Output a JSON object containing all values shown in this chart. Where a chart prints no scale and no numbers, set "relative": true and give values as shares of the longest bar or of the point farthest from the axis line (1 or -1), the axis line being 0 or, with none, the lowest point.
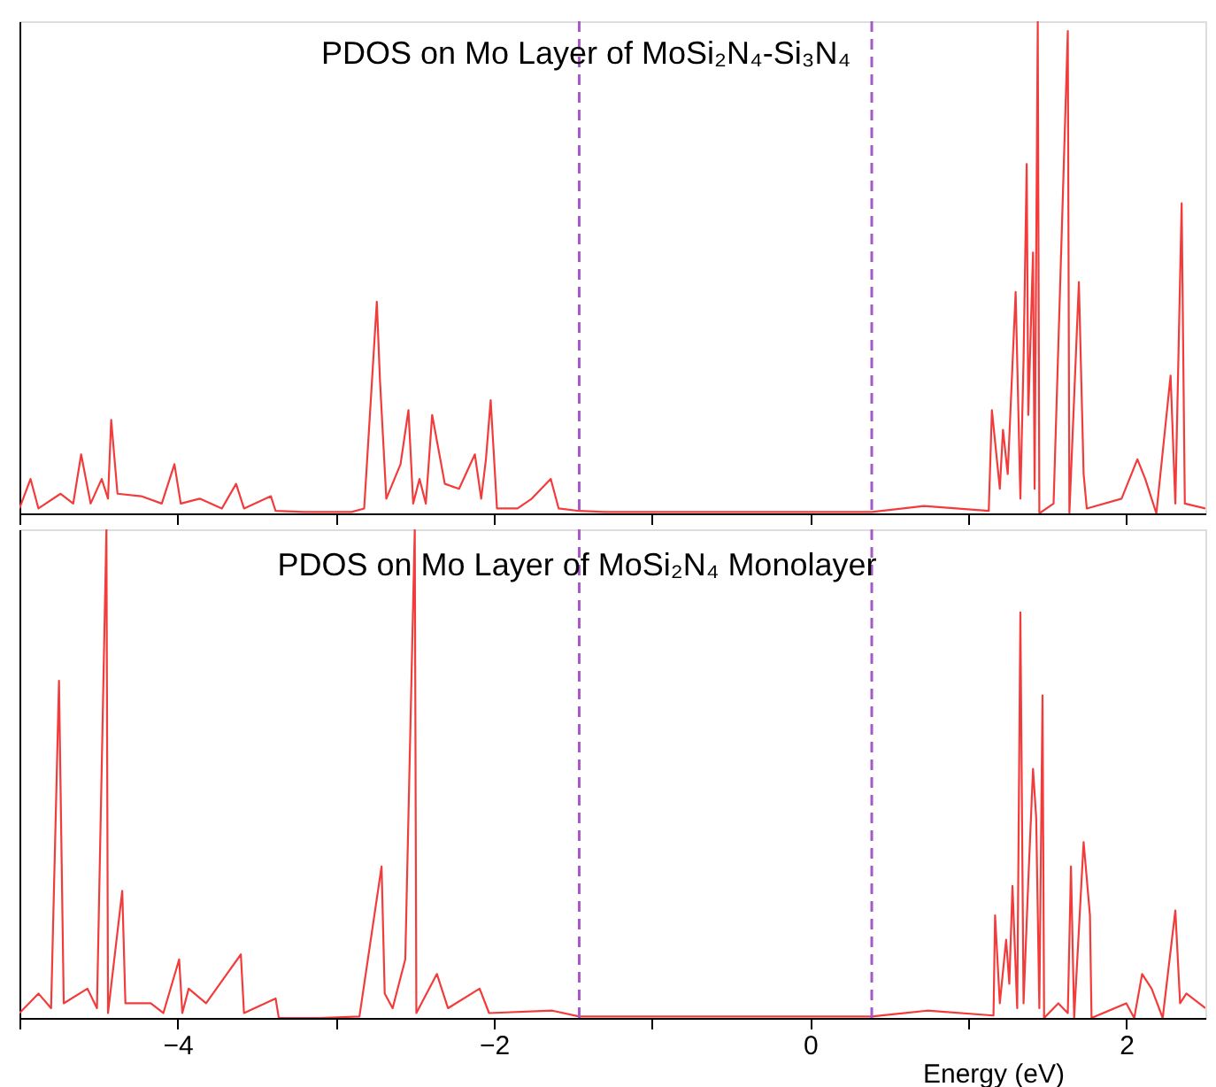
{
  "chart_data": [
    {
      "type": "line",
      "title": "PDOS on Mo Layer of MoSi₂N₄-Si₃N₄",
      "relative": true,
      "marker": "none",
      "line_style": "solid",
      "grid": false,
      "tick_labels": false,
      "xlim": [
        -5,
        2.5
      ],
      "xticks": [
        {
          "value": -5,
          "label": null
        },
        -4,
        {
          "value": -3,
          "label": null
        },
        -2,
        {
          "value": -1,
          "label": null
        },
        0,
        {
          "value": 1,
          "label": null
        },
        2
      ],
      "x": [
        -5.0,
        -4.93,
        -4.88,
        -4.74,
        -4.66,
        -4.61,
        -4.55,
        -4.48,
        -4.44,
        -4.42,
        -4.38,
        -4.23,
        -4.1,
        -4.02,
        -3.98,
        -3.86,
        -3.72,
        -3.63,
        -3.58,
        -3.41,
        -3.38,
        -3.2,
        -2.9,
        -2.82,
        -2.74,
        -2.72,
        -2.68,
        -2.59,
        -2.54,
        -2.51,
        -2.47,
        -2.43,
        -2.39,
        -2.31,
        -2.22,
        -2.12,
        -2.08,
        -2.05,
        -2.02,
        -1.98,
        -1.85,
        -1.76,
        -1.64,
        -1.59,
        -1.46,
        -1.3,
        0.39,
        0.72,
        1.13,
        1.15,
        1.2,
        1.22,
        1.25,
        1.3,
        1.33,
        1.35,
        1.37,
        1.38,
        1.41,
        1.42,
        1.44,
        1.45,
        1.54,
        1.63,
        1.64,
        1.7,
        1.73,
        1.75,
        1.97,
        2.07,
        2.12,
        2.19,
        2.28,
        2.31,
        2.35,
        2.37,
        2.5
      ],
      "series": [
        {
          "color": "#f23c3c",
          "values": [
            0.01,
            0.07,
            0.01,
            0.04,
            0.02,
            0.12,
            0.02,
            0.07,
            0.03,
            0.19,
            0.04,
            0.035,
            0.02,
            0.1,
            0.02,
            0.03,
            0.01,
            0.06,
            0.01,
            0.035,
            0.005,
            0.003,
            0.003,
            0.01,
            0.43,
            0.27,
            0.03,
            0.1,
            0.21,
            0.02,
            0.07,
            0.02,
            0.2,
            0.06,
            0.05,
            0.12,
            0.03,
            0.11,
            0.23,
            0.01,
            0.01,
            0.03,
            0.07,
            0.01,
            0.005,
            0.003,
            0.003,
            0.015,
            0.005,
            0.21,
            0.05,
            0.17,
            0.08,
            0.45,
            0.03,
            0.31,
            0.71,
            0.2,
            0.53,
            0.05,
            1.0,
            0.0,
            0.02,
            0.98,
            0.0,
            0.47,
            0.08,
            0.01,
            0.03,
            0.11,
            0.07,
            0.0,
            0.28,
            0.02,
            0.63,
            0.02,
            0.01
          ]
        }
      ],
      "ref_lines": [
        {
          "axis": "x",
          "value": -1.46,
          "color": "#a65ac8",
          "line_style": "dashed"
        },
        {
          "axis": "x",
          "value": 0.39,
          "color": "#a65ac8",
          "line_style": "dashed"
        }
      ]
    },
    {
      "type": "line",
      "title": "PDOS on Mo Layer of MoSi₂N₄ Monolayer",
      "xlabel": "Energy (eV)",
      "relative": true,
      "marker": "none",
      "line_style": "solid",
      "grid": false,
      "tick_labels": "x",
      "xlim": [
        -5,
        2.5
      ],
      "xticks": [
        {
          "value": -5,
          "label": null
        },
        -4,
        {
          "value": -3,
          "label": null
        },
        -2,
        {
          "value": -1,
          "label": null
        },
        0,
        {
          "value": 1,
          "label": null
        },
        2
      ],
      "x": [
        -5.0,
        -4.88,
        -4.8,
        -4.75,
        -4.72,
        -4.57,
        -4.51,
        -4.45,
        -4.44,
        -4.35,
        -4.33,
        -4.17,
        -4.09,
        -3.99,
        -3.97,
        -3.93,
        -3.82,
        -3.6,
        -3.58,
        -3.38,
        -3.36,
        -3.1,
        -2.85,
        -2.71,
        -2.69,
        -2.64,
        -2.56,
        -2.5,
        -2.49,
        -2.36,
        -2.29,
        -2.09,
        -2.03,
        -1.63,
        -1.46,
        -1.3,
        0.39,
        0.74,
        1.16,
        1.17,
        1.2,
        1.24,
        1.26,
        1.28,
        1.31,
        1.33,
        1.35,
        1.38,
        1.41,
        1.43,
        1.45,
        1.47,
        1.48,
        1.57,
        1.63,
        1.65,
        1.67,
        1.73,
        1.77,
        1.78,
        2.0,
        2.05,
        2.1,
        2.16,
        2.23,
        2.31,
        2.34,
        2.38,
        2.5
      ],
      "series": [
        {
          "color": "#f23c3c",
          "values": [
            0.01,
            0.05,
            0.02,
            0.69,
            0.03,
            0.06,
            0.02,
            1.0,
            0.01,
            0.26,
            0.03,
            0.03,
            0.01,
            0.12,
            0.01,
            0.06,
            0.03,
            0.13,
            0.01,
            0.04,
            0.0,
            0.0,
            0.003,
            0.31,
            0.05,
            0.02,
            0.12,
            1.0,
            0.01,
            0.09,
            0.02,
            0.06,
            0.01,
            0.015,
            0.003,
            0.003,
            0.003,
            0.015,
            0.005,
            0.21,
            0.03,
            0.16,
            0.07,
            0.27,
            0.02,
            0.83,
            0.03,
            0.28,
            0.51,
            0.41,
            0.02,
            0.66,
            0.0,
            0.03,
            0.01,
            0.31,
            0.0,
            0.36,
            0.21,
            0.0,
            0.03,
            0.0,
            0.09,
            0.06,
            0.0,
            0.22,
            0.03,
            0.05,
            0.02
          ]
        }
      ],
      "ref_lines": [
        {
          "axis": "x",
          "value": -1.46,
          "color": "#a65ac8",
          "line_style": "dashed"
        },
        {
          "axis": "x",
          "value": 0.39,
          "color": "#a65ac8",
          "line_style": "dashed"
        }
      ]
    }
  ]
}
